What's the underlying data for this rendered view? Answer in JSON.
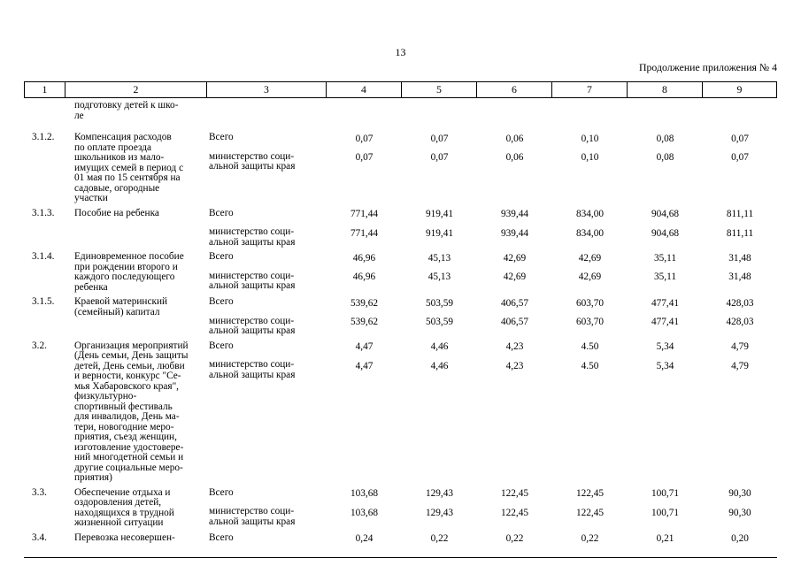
{
  "page": {
    "number": "13",
    "continuation": "Продолжение приложения № 4"
  },
  "table": {
    "column_headers": [
      "1",
      "2",
      "3",
      "4",
      "5",
      "6",
      "7",
      "8",
      "9"
    ],
    "carryover_text": "подготовку детей к шко-\nле",
    "rows": [
      {
        "num": "3.1.2.",
        "name": "Компенсация расходов\nпо оплате проезда\nшкольников из мало-\nимущих семей в период с\n01 мая по 15 сентября на\nсадовые, огородные\nучастки",
        "subrows": [
          {
            "executor": "Всего",
            "values": [
              "0,07",
              "0,07",
              "0,06",
              "0,10",
              "0,08",
              "0,07"
            ]
          },
          {
            "executor": "министерство соци-\nальной защиты края",
            "values": [
              "0,07",
              "0,07",
              "0,06",
              "0,10",
              "0,08",
              "0,07"
            ]
          }
        ]
      },
      {
        "num": "3.1.3.",
        "name": "Пособие на ребенка",
        "subrows": [
          {
            "executor": "Всего",
            "values": [
              "771,44",
              "919,41",
              "939,44",
              "834,00",
              "904,68",
              "811,11"
            ]
          },
          {
            "executor": "министерство соци-\nальной защиты края",
            "values": [
              "771,44",
              "919,41",
              "939,44",
              "834,00",
              "904,68",
              "811,11"
            ]
          }
        ]
      },
      {
        "num": "3.1.4.",
        "name": "Единовременное пособие\nпри рождении второго и\nкаждого последующего\nребенка",
        "subrows": [
          {
            "executor": "Всего",
            "values": [
              "46,96",
              "45,13",
              "42,69",
              "42,69",
              "35,11",
              "31,48"
            ]
          },
          {
            "executor": "министерство соци-\nальной защиты края",
            "values": [
              "46,96",
              "45,13",
              "42,69",
              "42,69",
              "35,11",
              "31,48"
            ]
          }
        ]
      },
      {
        "num": "3.1.5.",
        "name": "Краевой материнский\n(семейный) капитал",
        "subrows": [
          {
            "executor": "Всего",
            "values": [
              "539,62",
              "503,59",
              "406,57",
              "603,70",
              "477,41",
              "428,03"
            ]
          },
          {
            "executor": "министерство соци-\nальной защиты края",
            "values": [
              "539,62",
              "503,59",
              "406,57",
              "603,70",
              "477,41",
              "428,03"
            ]
          }
        ]
      },
      {
        "num": "3.2.",
        "name": "Организация мероприятий\n(День семьи, День защиты\nдетей, День семьи, любви\nи верности, конкурс \"Се-\nмья Хабаровского края\",\nфизкультурно-\nспортивный фестиваль\nдля инвалидов, День ма-\nтери, новогодние меро-\nприятия, съезд женщин,\nизготовление удостовере-\nний многодетной семьи и\nдругие социальные меро-\nприятия)",
        "subrows": [
          {
            "executor": "Всего",
            "values": [
              "4,47",
              "4,46",
              "4,23",
              "4.50",
              "5,34",
              "4,79"
            ]
          },
          {
            "executor": "министерство соци-\nальной защиты края",
            "values": [
              "4,47",
              "4,46",
              "4,23",
              "4.50",
              "5,34",
              "4,79"
            ]
          }
        ]
      },
      {
        "num": "3.3.",
        "name": "Обеспечение отдыха и\nоздоровления детей,\nнаходящихся в трудной\nжизненной ситуации",
        "subrows": [
          {
            "executor": "Всего",
            "values": [
              "103,68",
              "129,43",
              "122,45",
              "122,45",
              "100,71",
              "90,30"
            ]
          },
          {
            "executor": "министерство соци-\nальной защиты края",
            "values": [
              "103,68",
              "129,43",
              "122,45",
              "122,45",
              "100,71",
              "90,30"
            ]
          }
        ]
      },
      {
        "num": "3.4.",
        "name": "Перевозка несовершен-",
        "subrows": [
          {
            "executor": "Всего",
            "values": [
              "0,24",
              "0,22",
              "0,22",
              "0,22",
              "0,21",
              "0,20"
            ]
          }
        ]
      }
    ]
  }
}
